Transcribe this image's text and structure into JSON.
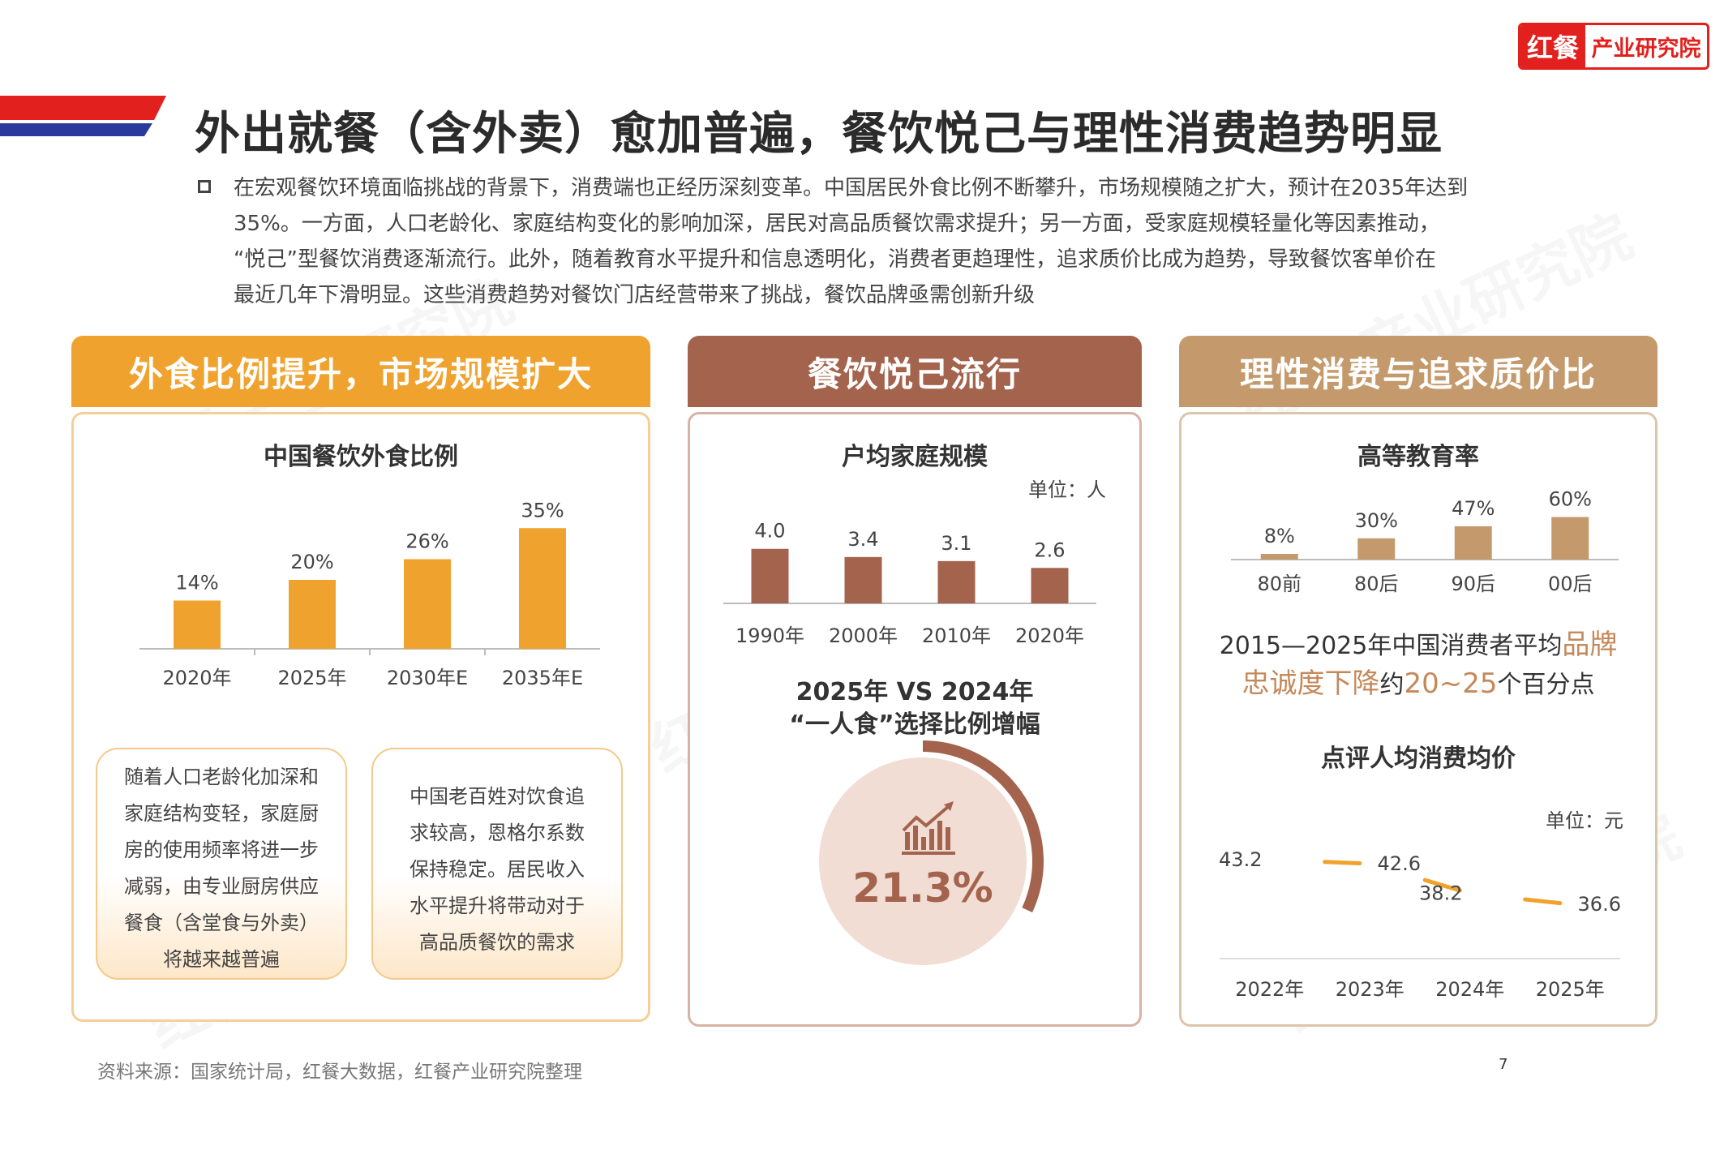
{
  "logo": {
    "mark": "红餐",
    "text": "产业研究院"
  },
  "title": "外出就餐（含外卖）愈加普遍，餐饮悦己与理性消费趋势明显",
  "intro": {
    "line1": "在宏观餐饮环境面临挑战的背景下，消费端也正经历深刻变革。中国居民外食比例不断攀升，市场规模随之扩大，预计在2035年达到",
    "line2": "35%。一方面，人口老龄化、家庭结构变化的影响加深，居民对高品质餐饮需求提升；另一方面，受家庭规模轻量化等因素推动，",
    "line3": "“悦己”型餐饮消费逐渐流行。此外，随着教育水平提升和信息透明化，消费者更趋理性，追求质价比成为趋势，导致餐饮客单价在",
    "line4": "最近几年下滑明显。这些消费趋势对餐饮门店经营带来了挑战，餐饮品牌亟需创新升级"
  },
  "panels": {
    "left": {
      "header": "外食比例提升，市场规模扩大",
      "color": "#f0a22e"
    },
    "middle": {
      "header": "餐饮悦己流行",
      "color": "#a3634d"
    },
    "right": {
      "header": "理性消费与追求质价比",
      "color": "#c49a6c"
    }
  },
  "chart_data": [
    {
      "type": "bar",
      "title": "中国餐饮外食比例",
      "categories": [
        "2020年",
        "2025年",
        "2030年E",
        "2035年E"
      ],
      "values": [
        14,
        20,
        26,
        35
      ],
      "labels": [
        "14%",
        "20%",
        "26%",
        "35%"
      ],
      "ylim": [
        0,
        40
      ],
      "color": "#f0a22e"
    },
    {
      "type": "bar",
      "title": "户均家庭规模",
      "unit": "单位：人",
      "categories": [
        "1990年",
        "2000年",
        "2010年",
        "2020年"
      ],
      "values": [
        4.0,
        3.4,
        3.1,
        2.6
      ],
      "labels": [
        "4.0",
        "3.4",
        "3.1",
        "2.6"
      ],
      "ylim": [
        0,
        4.4
      ],
      "color": "#a3634d"
    },
    {
      "type": "bar",
      "title": "高等教育率",
      "categories": [
        "80前",
        "80后",
        "90后",
        "00后"
      ],
      "values": [
        8,
        30,
        47,
        60
      ],
      "labels": [
        "8%",
        "30%",
        "47%",
        "60%"
      ],
      "ylim": [
        0,
        64
      ],
      "color": "#c49a6c"
    },
    {
      "type": "line",
      "title": "点评人均消费均价",
      "unit": "单位：元",
      "categories": [
        "2022年",
        "2023年",
        "2024年",
        "2025年"
      ],
      "values": [
        43.2,
        42.6,
        38.2,
        36.6
      ],
      "labels": [
        "43.2",
        "42.6",
        "38.2",
        "36.6"
      ],
      "ylim": [
        30,
        48
      ],
      "color": "#f0a22e"
    }
  ],
  "notes": {
    "left": [
      "随着人口老龄化加深和",
      "家庭结构变轻，家庭厨",
      "房的使用频率将进一步",
      "减弱，由专业厨房供应",
      "餐食（含堂食与外卖）",
      "将越来越普遍"
    ],
    "right": [
      "中国老百姓对饮食追",
      "求较高，恩格尔系数",
      "保持稳定。居民收入",
      "水平提升将带动对于",
      "高品质餐饮的需求"
    ]
  },
  "solo": {
    "title_line1": "2025年 VS 2024年",
    "title_line2": "“一人食”选择比例增幅",
    "value": "21.3%",
    "fraction": 0.213,
    "icon": "growth-chart-icon",
    "ring_color": "#a3634d"
  },
  "loyalty": {
    "part1": "2015—2025年中国消费者平均",
    "highlight1": "品牌",
    "highlight2": "忠诚度下降",
    "part2": "约",
    "highlight3": "20~25",
    "part3": "个百分点",
    "highlight_color": "#c4895a"
  },
  "source": "资料来源：国家统计局，红餐大数据，红餐产业研究院整理",
  "page": "7"
}
